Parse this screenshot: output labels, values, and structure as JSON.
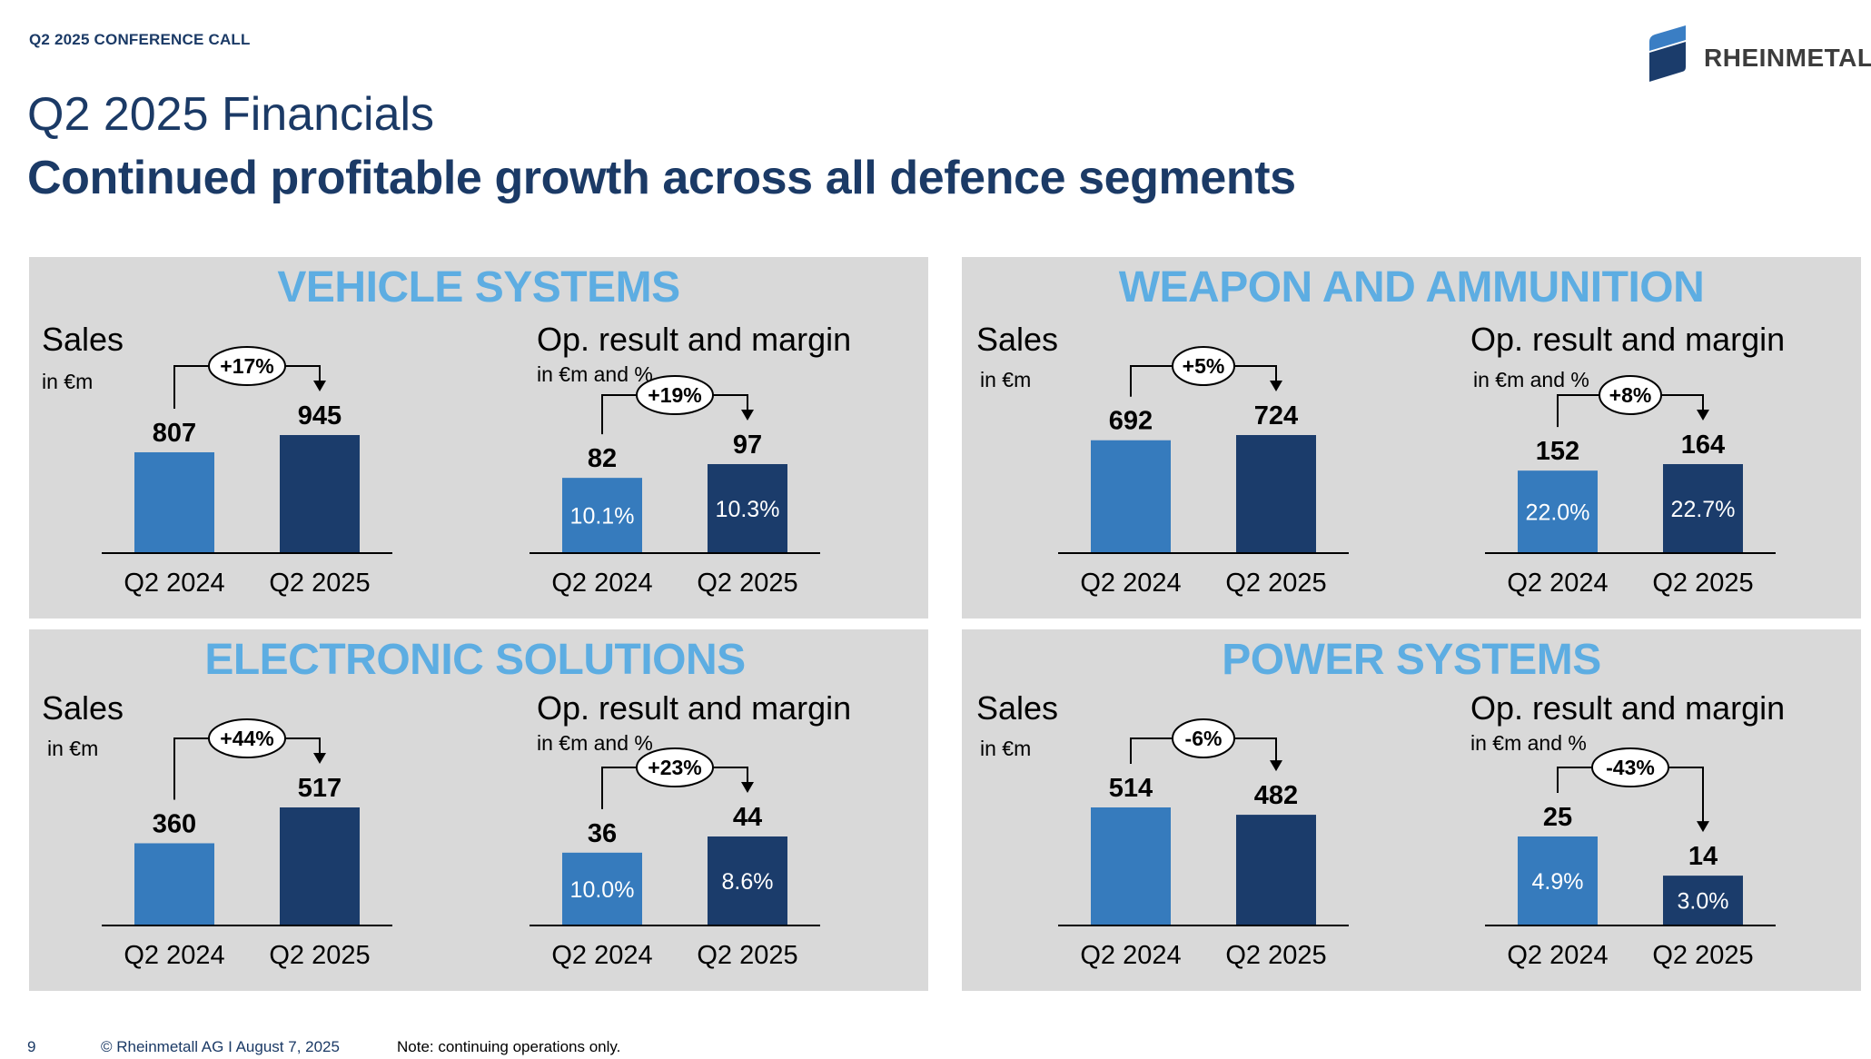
{
  "header": {
    "top_label": "Q2 2025 CONFERENCE CALL",
    "title": "Q2 2025 Financials",
    "subtitle": "Continued profitable growth across all defence segments",
    "logo_text": "RHEINMETALL"
  },
  "colors": {
    "bar_prior": "#367bbd",
    "bar_current": "#1b3c6b",
    "panel_bg": "#d9d9d9",
    "segment_title": "#5dade2",
    "brand_navy": "#1b3a66"
  },
  "labels": {
    "sales_title": "Sales",
    "sales_unit": "in €m",
    "op_title": "Op. result and margin",
    "op_unit": "in €m and %"
  },
  "footer": {
    "page_number": "9",
    "copyright": "© Rheinmetall AG I August 7, 2025",
    "note": "Note: continuing operations only."
  },
  "chart_data": [
    {
      "type": "bar",
      "segment": "VEHICLE SYSTEMS",
      "title": "Sales",
      "ylabel": "in €m",
      "categories": [
        "Q2 2024",
        "Q2 2025"
      ],
      "values": [
        807,
        945
      ],
      "value_labels": [
        "807",
        "945"
      ],
      "change": "+17%"
    },
    {
      "type": "bar",
      "segment": "VEHICLE SYSTEMS",
      "title": "Op. result and margin",
      "ylabel": "in €m and %",
      "categories": [
        "Q2 2024",
        "Q2 2025"
      ],
      "values": [
        82,
        97
      ],
      "value_labels": [
        "82",
        "97"
      ],
      "margins": [
        "10.1%",
        "10.3%"
      ],
      "change": "+19%"
    },
    {
      "type": "bar",
      "segment": "WEAPON AND AMMUNITION",
      "title": "Sales",
      "ylabel": "in €m",
      "categories": [
        "Q2 2024",
        "Q2 2025"
      ],
      "values": [
        692,
        724
      ],
      "value_labels": [
        "692",
        "724"
      ],
      "change": "+5%"
    },
    {
      "type": "bar",
      "segment": "WEAPON AND AMMUNITION",
      "title": "Op. result and margin",
      "ylabel": "in €m and %",
      "categories": [
        "Q2 2024",
        "Q2 2025"
      ],
      "values": [
        152,
        164
      ],
      "value_labels": [
        "152",
        "164"
      ],
      "margins": [
        "22.0%",
        "22.7%"
      ],
      "change": "+8%"
    },
    {
      "type": "bar",
      "segment": "ELECTRONIC SOLUTIONS",
      "title": "Sales",
      "ylabel": "in €m",
      "categories": [
        "Q2 2024",
        "Q2 2025"
      ],
      "values": [
        360,
        517
      ],
      "value_labels": [
        "360",
        "517"
      ],
      "change": "+44%"
    },
    {
      "type": "bar",
      "segment": "ELECTRONIC SOLUTIONS",
      "title": "Op. result and margin",
      "ylabel": "in €m and %",
      "categories": [
        "Q2 2024",
        "Q2 2025"
      ],
      "values": [
        36,
        44
      ],
      "value_labels": [
        "36",
        "44"
      ],
      "margins": [
        "10.0%",
        "8.6%"
      ],
      "change": "+23%"
    },
    {
      "type": "bar",
      "segment": "POWER SYSTEMS",
      "title": "Sales",
      "ylabel": "in €m",
      "categories": [
        "Q2 2024",
        "Q2 2025"
      ],
      "values": [
        514,
        482
      ],
      "value_labels": [
        "514",
        "482"
      ],
      "change": "-6%"
    },
    {
      "type": "bar",
      "segment": "POWER SYSTEMS",
      "title": "Op. result and margin",
      "ylabel": "in €m and %",
      "categories": [
        "Q2 2024",
        "Q2 2025"
      ],
      "values": [
        25,
        14
      ],
      "value_labels": [
        "25",
        "14"
      ],
      "margins": [
        "4.9%",
        "3.0%"
      ],
      "change": "-43%"
    }
  ],
  "segments": [
    {
      "name": "VEHICLE SYSTEMS"
    },
    {
      "name": "WEAPON AND AMMUNITION"
    },
    {
      "name": "ELECTRONIC SOLUTIONS"
    },
    {
      "name": "POWER SYSTEMS"
    }
  ]
}
